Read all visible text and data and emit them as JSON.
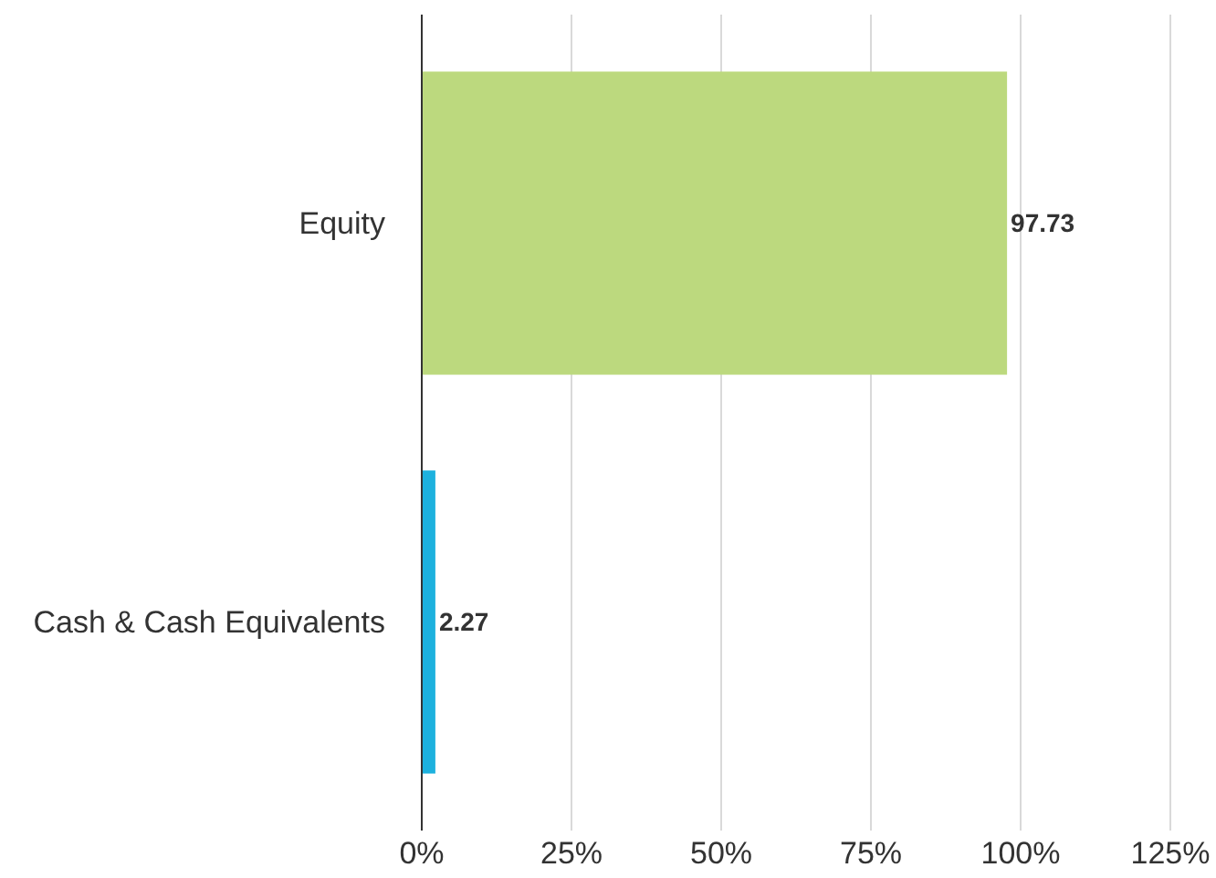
{
  "chart_data": {
    "type": "bar",
    "orientation": "horizontal",
    "categories": [
      "Equity",
      "Cash & Cash Equivalents"
    ],
    "values": [
      97.73,
      2.27
    ],
    "colors": [
      "#bcd97e",
      "#1db1de"
    ],
    "xlim": [
      0,
      125
    ],
    "xticks": [
      {
        "value": 0,
        "label": "0%"
      },
      {
        "value": 25,
        "label": "25%"
      },
      {
        "value": 50,
        "label": "50%"
      },
      {
        "value": 75,
        "label": "75%"
      },
      {
        "value": 100,
        "label": "100%"
      },
      {
        "value": 125,
        "label": "125%"
      }
    ],
    "grid": "x",
    "data_labels": true
  }
}
